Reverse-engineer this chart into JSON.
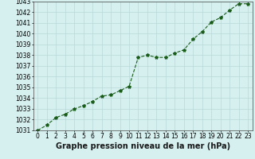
{
  "x": [
    0,
    1,
    2,
    3,
    4,
    5,
    6,
    7,
    8,
    9,
    10,
    11,
    12,
    13,
    14,
    15,
    16,
    17,
    18,
    19,
    20,
    21,
    22,
    23
  ],
  "y": [
    1031.0,
    1031.5,
    1032.2,
    1032.5,
    1033.0,
    1033.3,
    1033.7,
    1034.2,
    1034.3,
    1034.7,
    1035.1,
    1037.8,
    1038.0,
    1037.8,
    1037.8,
    1038.2,
    1038.5,
    1039.5,
    1040.2,
    1041.1,
    1041.5,
    1042.2,
    1042.8,
    1042.8
  ],
  "line_color": "#1a5c1a",
  "marker": "*",
  "marker_size": 3,
  "background_color": "#d6f0f0",
  "grid_color": "#b8d8d8",
  "xlabel": "Graphe pression niveau de la mer (hPa)",
  "xlabel_fontsize": 7,
  "xlabel_bold": true,
  "ylim": [
    1031,
    1043
  ],
  "xlim": [
    -0.5,
    23.5
  ],
  "yticks": [
    1031,
    1032,
    1033,
    1034,
    1035,
    1036,
    1037,
    1038,
    1039,
    1040,
    1041,
    1042,
    1043
  ],
  "xticks": [
    0,
    1,
    2,
    3,
    4,
    5,
    6,
    7,
    8,
    9,
    10,
    11,
    12,
    13,
    14,
    15,
    16,
    17,
    18,
    19,
    20,
    21,
    22,
    23
  ],
  "tick_fontsize": 5.5,
  "line_width": 0.8,
  "line_style": "--"
}
